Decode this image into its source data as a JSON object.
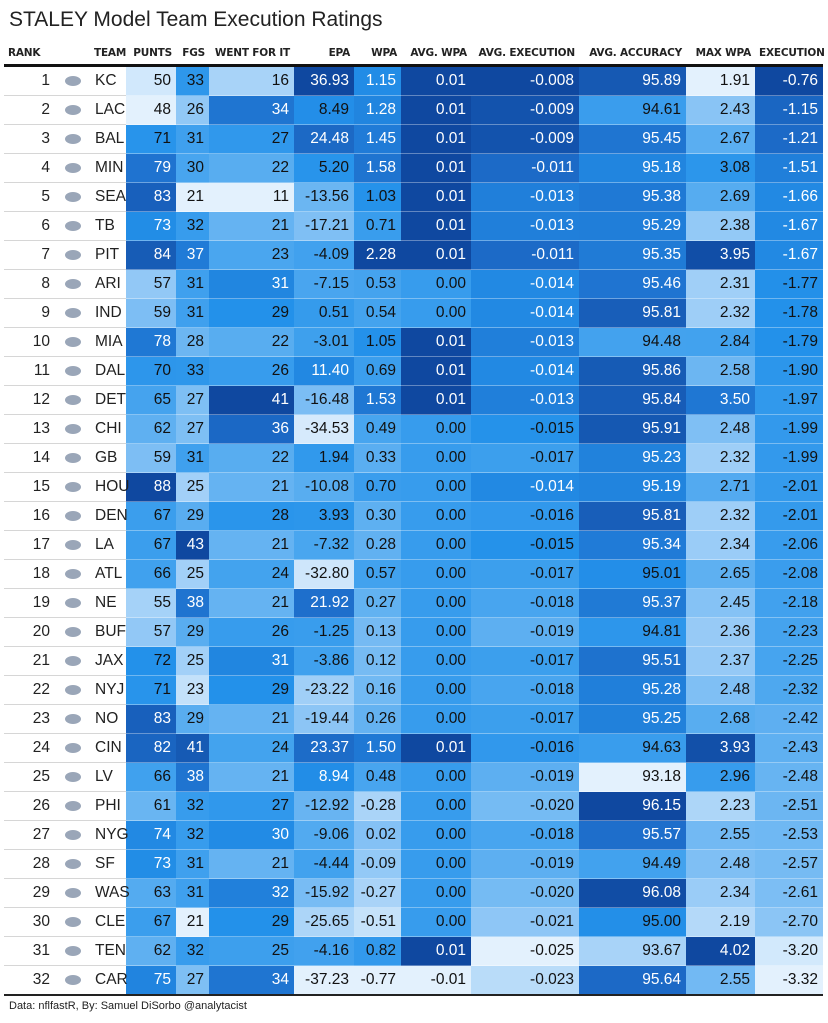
{
  "title": "STALEY Model Team Execution Ratings",
  "footer": "Data: nflfastR, By: Samuel DiSorbo @analytacist",
  "colors": {
    "scale": [
      "#e3f1fd",
      "#9ccdf7",
      "#4aa6ef",
      "#2391ea",
      "#1e6fcc",
      "#0f48a0"
    ],
    "dark_text": "#111111",
    "light_text": "#ffffff"
  },
  "columns": [
    "RANK",
    "TEAM",
    "PUNTS",
    "FGS",
    "WENT FOR IT",
    "EPA",
    "WPA",
    "AVG. WPA",
    "AVG. EXECUTION",
    "AVG. ACCURACY",
    "MAX WPA",
    "EXECUTION"
  ],
  "chart_data": {
    "type": "table",
    "title": "STALEY Model Team Execution Ratings",
    "columns": [
      "RANK",
      "TEAM",
      "PUNTS",
      "FGS",
      "WENT FOR IT",
      "EPA",
      "WPA",
      "AVG. WPA",
      "AVG. EXECUTION",
      "AVG. ACCURACY",
      "MAX WPA",
      "EXECUTION"
    ],
    "rows": [
      {
        "rank": "1",
        "logo": "kc-logo-icon",
        "team": "KC",
        "punts": "50",
        "fgs": "33",
        "went": "16",
        "epa": "36.93",
        "wpa": "1.15",
        "avg_wpa": "0.01",
        "avg_exec": "-0.008",
        "avg_acc": "95.89",
        "max_wpa": "1.91",
        "exec": "-0.76"
      },
      {
        "rank": "2",
        "logo": "lac-logo-icon",
        "team": "LAC",
        "punts": "48",
        "fgs": "26",
        "went": "34",
        "epa": "8.49",
        "wpa": "1.28",
        "avg_wpa": "0.01",
        "avg_exec": "-0.009",
        "avg_acc": "94.61",
        "max_wpa": "2.43",
        "exec": "-1.15"
      },
      {
        "rank": "3",
        "logo": "bal-logo-icon",
        "team": "BAL",
        "punts": "71",
        "fgs": "31",
        "went": "27",
        "epa": "24.48",
        "wpa": "1.45",
        "avg_wpa": "0.01",
        "avg_exec": "-0.009",
        "avg_acc": "95.45",
        "max_wpa": "2.67",
        "exec": "-1.21"
      },
      {
        "rank": "4",
        "logo": "min-logo-icon",
        "team": "MIN",
        "punts": "79",
        "fgs": "30",
        "went": "22",
        "epa": "5.20",
        "wpa": "1.58",
        "avg_wpa": "0.01",
        "avg_exec": "-0.011",
        "avg_acc": "95.18",
        "max_wpa": "3.08",
        "exec": "-1.51"
      },
      {
        "rank": "5",
        "logo": "sea-logo-icon",
        "team": "SEA",
        "punts": "83",
        "fgs": "21",
        "went": "11",
        "epa": "-13.56",
        "wpa": "1.03",
        "avg_wpa": "0.01",
        "avg_exec": "-0.013",
        "avg_acc": "95.38",
        "max_wpa": "2.69",
        "exec": "-1.66"
      },
      {
        "rank": "6",
        "logo": "tb-logo-icon",
        "team": "TB",
        "punts": "73",
        "fgs": "32",
        "went": "21",
        "epa": "-17.21",
        "wpa": "0.71",
        "avg_wpa": "0.01",
        "avg_exec": "-0.013",
        "avg_acc": "95.29",
        "max_wpa": "2.38",
        "exec": "-1.67"
      },
      {
        "rank": "7",
        "logo": "pit-logo-icon",
        "team": "PIT",
        "punts": "84",
        "fgs": "37",
        "went": "23",
        "epa": "-4.09",
        "wpa": "2.28",
        "avg_wpa": "0.01",
        "avg_exec": "-0.011",
        "avg_acc": "95.35",
        "max_wpa": "3.95",
        "exec": "-1.67"
      },
      {
        "rank": "8",
        "logo": "ari-logo-icon",
        "team": "ARI",
        "punts": "57",
        "fgs": "31",
        "went": "31",
        "epa": "-7.15",
        "wpa": "0.53",
        "avg_wpa": "0.00",
        "avg_exec": "-0.014",
        "avg_acc": "95.46",
        "max_wpa": "2.31",
        "exec": "-1.77"
      },
      {
        "rank": "9",
        "logo": "ind-logo-icon",
        "team": "IND",
        "punts": "59",
        "fgs": "31",
        "went": "29",
        "epa": "0.51",
        "wpa": "0.54",
        "avg_wpa": "0.00",
        "avg_exec": "-0.014",
        "avg_acc": "95.81",
        "max_wpa": "2.32",
        "exec": "-1.78"
      },
      {
        "rank": "10",
        "logo": "mia-logo-icon",
        "team": "MIA",
        "punts": "78",
        "fgs": "28",
        "went": "22",
        "epa": "-3.01",
        "wpa": "1.05",
        "avg_wpa": "0.01",
        "avg_exec": "-0.013",
        "avg_acc": "94.48",
        "max_wpa": "2.84",
        "exec": "-1.79"
      },
      {
        "rank": "11",
        "logo": "dal-logo-icon",
        "team": "DAL",
        "punts": "70",
        "fgs": "33",
        "went": "26",
        "epa": "11.40",
        "wpa": "0.69",
        "avg_wpa": "0.01",
        "avg_exec": "-0.014",
        "avg_acc": "95.86",
        "max_wpa": "2.58",
        "exec": "-1.90"
      },
      {
        "rank": "12",
        "logo": "det-logo-icon",
        "team": "DET",
        "punts": "65",
        "fgs": "27",
        "went": "41",
        "epa": "-16.48",
        "wpa": "1.53",
        "avg_wpa": "0.01",
        "avg_exec": "-0.013",
        "avg_acc": "95.84",
        "max_wpa": "3.50",
        "exec": "-1.97"
      },
      {
        "rank": "13",
        "logo": "chi-logo-icon",
        "team": "CHI",
        "punts": "62",
        "fgs": "27",
        "went": "36",
        "epa": "-34.53",
        "wpa": "0.49",
        "avg_wpa": "0.00",
        "avg_exec": "-0.015",
        "avg_acc": "95.91",
        "max_wpa": "2.48",
        "exec": "-1.99"
      },
      {
        "rank": "14",
        "logo": "gb-logo-icon",
        "team": "GB",
        "punts": "59",
        "fgs": "31",
        "went": "22",
        "epa": "1.94",
        "wpa": "0.33",
        "avg_wpa": "0.00",
        "avg_exec": "-0.017",
        "avg_acc": "95.23",
        "max_wpa": "2.32",
        "exec": "-1.99"
      },
      {
        "rank": "15",
        "logo": "hou-logo-icon",
        "team": "HOU",
        "punts": "88",
        "fgs": "25",
        "went": "21",
        "epa": "-10.08",
        "wpa": "0.70",
        "avg_wpa": "0.00",
        "avg_exec": "-0.014",
        "avg_acc": "95.19",
        "max_wpa": "2.71",
        "exec": "-2.01"
      },
      {
        "rank": "16",
        "logo": "den-logo-icon",
        "team": "DEN",
        "punts": "67",
        "fgs": "29",
        "went": "28",
        "epa": "3.93",
        "wpa": "0.30",
        "avg_wpa": "0.00",
        "avg_exec": "-0.016",
        "avg_acc": "95.81",
        "max_wpa": "2.32",
        "exec": "-2.01"
      },
      {
        "rank": "17",
        "logo": "la-logo-icon",
        "team": "LA",
        "punts": "67",
        "fgs": "43",
        "went": "21",
        "epa": "-7.32",
        "wpa": "0.28",
        "avg_wpa": "0.00",
        "avg_exec": "-0.015",
        "avg_acc": "95.34",
        "max_wpa": "2.34",
        "exec": "-2.06"
      },
      {
        "rank": "18",
        "logo": "atl-logo-icon",
        "team": "ATL",
        "punts": "66",
        "fgs": "25",
        "went": "24",
        "epa": "-32.80",
        "wpa": "0.57",
        "avg_wpa": "0.00",
        "avg_exec": "-0.017",
        "avg_acc": "95.01",
        "max_wpa": "2.65",
        "exec": "-2.08"
      },
      {
        "rank": "19",
        "logo": "ne-logo-icon",
        "team": "NE",
        "punts": "55",
        "fgs": "38",
        "went": "21",
        "epa": "21.92",
        "wpa": "0.27",
        "avg_wpa": "0.00",
        "avg_exec": "-0.018",
        "avg_acc": "95.37",
        "max_wpa": "2.45",
        "exec": "-2.18"
      },
      {
        "rank": "20",
        "logo": "buf-logo-icon",
        "team": "BUF",
        "punts": "57",
        "fgs": "29",
        "went": "26",
        "epa": "-1.25",
        "wpa": "0.13",
        "avg_wpa": "0.00",
        "avg_exec": "-0.019",
        "avg_acc": "94.81",
        "max_wpa": "2.36",
        "exec": "-2.23"
      },
      {
        "rank": "21",
        "logo": "jax-logo-icon",
        "team": "JAX",
        "punts": "72",
        "fgs": "25",
        "went": "31",
        "epa": "-3.86",
        "wpa": "0.12",
        "avg_wpa": "0.00",
        "avg_exec": "-0.017",
        "avg_acc": "95.51",
        "max_wpa": "2.37",
        "exec": "-2.25"
      },
      {
        "rank": "22",
        "logo": "nyj-logo-icon",
        "team": "NYJ",
        "punts": "71",
        "fgs": "23",
        "went": "29",
        "epa": "-23.22",
        "wpa": "0.16",
        "avg_wpa": "0.00",
        "avg_exec": "-0.018",
        "avg_acc": "95.28",
        "max_wpa": "2.48",
        "exec": "-2.32"
      },
      {
        "rank": "23",
        "logo": "no-logo-icon",
        "team": "NO",
        "punts": "83",
        "fgs": "29",
        "went": "21",
        "epa": "-19.44",
        "wpa": "0.26",
        "avg_wpa": "0.00",
        "avg_exec": "-0.017",
        "avg_acc": "95.25",
        "max_wpa": "2.68",
        "exec": "-2.42"
      },
      {
        "rank": "24",
        "logo": "cin-logo-icon",
        "team": "CIN",
        "punts": "82",
        "fgs": "41",
        "went": "24",
        "epa": "23.37",
        "wpa": "1.50",
        "avg_wpa": "0.01",
        "avg_exec": "-0.016",
        "avg_acc": "94.63",
        "max_wpa": "3.93",
        "exec": "-2.43"
      },
      {
        "rank": "25",
        "logo": "lv-logo-icon",
        "team": "LV",
        "punts": "66",
        "fgs": "38",
        "went": "21",
        "epa": "8.94",
        "wpa": "0.48",
        "avg_wpa": "0.00",
        "avg_exec": "-0.019",
        "avg_acc": "93.18",
        "max_wpa": "2.96",
        "exec": "-2.48"
      },
      {
        "rank": "26",
        "logo": "phi-logo-icon",
        "team": "PHI",
        "punts": "61",
        "fgs": "32",
        "went": "27",
        "epa": "-12.92",
        "wpa": "-0.28",
        "avg_wpa": "0.00",
        "avg_exec": "-0.020",
        "avg_acc": "96.15",
        "max_wpa": "2.23",
        "exec": "-2.51"
      },
      {
        "rank": "27",
        "logo": "nyg-logo-icon",
        "team": "NYG",
        "punts": "74",
        "fgs": "32",
        "went": "30",
        "epa": "-9.06",
        "wpa": "0.02",
        "avg_wpa": "0.00",
        "avg_exec": "-0.018",
        "avg_acc": "95.57",
        "max_wpa": "2.55",
        "exec": "-2.53"
      },
      {
        "rank": "28",
        "logo": "sf-logo-icon",
        "team": "SF",
        "punts": "73",
        "fgs": "31",
        "went": "21",
        "epa": "-4.44",
        "wpa": "-0.09",
        "avg_wpa": "0.00",
        "avg_exec": "-0.019",
        "avg_acc": "94.49",
        "max_wpa": "2.48",
        "exec": "-2.57"
      },
      {
        "rank": "29",
        "logo": "was-logo-icon",
        "team": "WAS",
        "punts": "63",
        "fgs": "31",
        "went": "32",
        "epa": "-15.92",
        "wpa": "-0.27",
        "avg_wpa": "0.00",
        "avg_exec": "-0.020",
        "avg_acc": "96.08",
        "max_wpa": "2.34",
        "exec": "-2.61"
      },
      {
        "rank": "30",
        "logo": "cle-logo-icon",
        "team": "CLE",
        "punts": "67",
        "fgs": "21",
        "went": "29",
        "epa": "-25.65",
        "wpa": "-0.51",
        "avg_wpa": "0.00",
        "avg_exec": "-0.021",
        "avg_acc": "95.00",
        "max_wpa": "2.19",
        "exec": "-2.70"
      },
      {
        "rank": "31",
        "logo": "ten-logo-icon",
        "team": "TEN",
        "punts": "62",
        "fgs": "32",
        "went": "25",
        "epa": "-4.16",
        "wpa": "0.82",
        "avg_wpa": "0.01",
        "avg_exec": "-0.025",
        "avg_acc": "93.67",
        "max_wpa": "4.02",
        "exec": "-3.20"
      },
      {
        "rank": "32",
        "logo": "car-logo-icon",
        "team": "CAR",
        "punts": "75",
        "fgs": "27",
        "went": "34",
        "epa": "-37.23",
        "wpa": "-0.77",
        "avg_wpa": "-0.01",
        "avg_exec": "-0.023",
        "avg_acc": "95.64",
        "max_wpa": "2.55",
        "exec": "-3.32"
      }
    ]
  }
}
